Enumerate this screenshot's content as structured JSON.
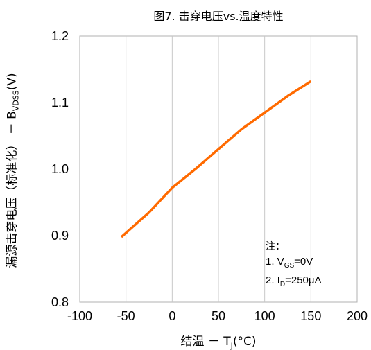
{
  "chart_data": {
    "type": "line",
    "title": "图7. 击穿电压vs.温度特性",
    "xlabel": {
      "prefix": "结温 － T",
      "sub": "J",
      "suffix": "(°C)"
    },
    "ylabel": {
      "prefix": "漏源击穿电压（标准化） － B",
      "sub": "VDSS",
      "suffix": "(V)"
    },
    "xlim": [
      -100,
      200
    ],
    "ylim": [
      0.8,
      1.2
    ],
    "xticks": [
      "-100",
      "-50",
      "0",
      "50",
      "100",
      "150",
      "200"
    ],
    "yticks": [
      "0.8",
      "0.9",
      "1.0",
      "1.1",
      "1.2"
    ],
    "xtick_values": [
      -100,
      -50,
      0,
      50,
      100,
      150,
      200
    ],
    "ytick_values": [
      0.8,
      0.9,
      1.0,
      1.1,
      1.2
    ],
    "grid": "vertical",
    "series": [
      {
        "color": "#ff6a00",
        "x": [
          -55,
          -25,
          0,
          25,
          50,
          75,
          100,
          125,
          150
        ],
        "y": [
          0.898,
          0.935,
          0.972,
          1.0,
          1.03,
          1.06,
          1.085,
          1.11,
          1.132
        ]
      }
    ],
    "annotation": {
      "heading": "注：",
      "line1": {
        "prefix": "1. V",
        "sub": "GS",
        "suffix": "=0V"
      },
      "line2": {
        "prefix": "2. I",
        "sub": "D",
        "suffix": "=250μA"
      }
    }
  }
}
